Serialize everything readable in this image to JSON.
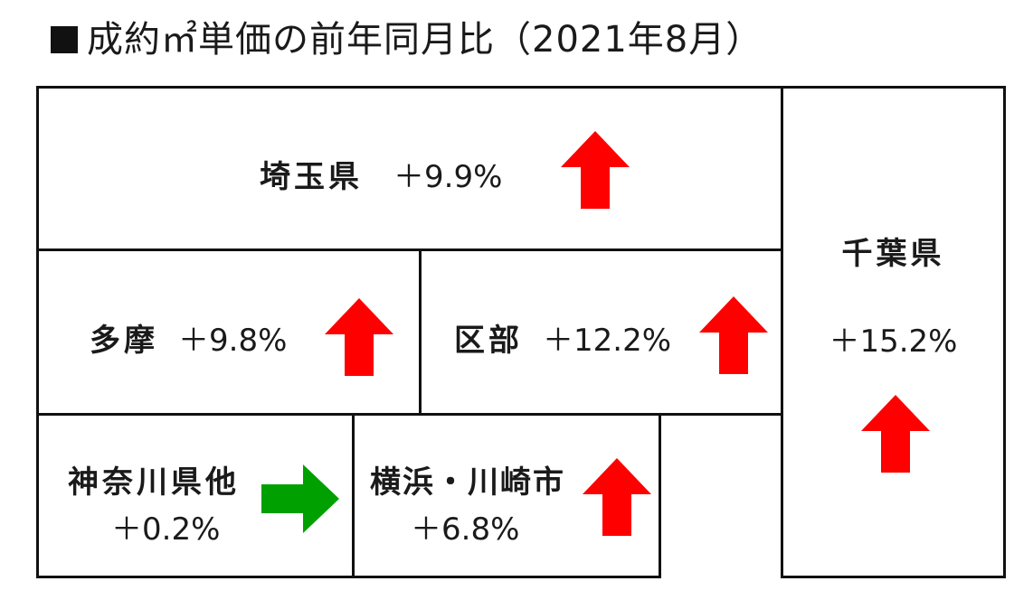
{
  "title": "成約㎡単価の前年同月比（2021年8月）",
  "colors": {
    "up": "#ff0000",
    "flat": "#00a000",
    "border": "#111111"
  },
  "regions": {
    "saitama": {
      "name": "埼玉県",
      "change": "＋9.9%",
      "trend": "up"
    },
    "tama": {
      "name": "多摩",
      "change": "＋9.8%",
      "trend": "up"
    },
    "ku": {
      "name": "区部",
      "change": "＋12.2%",
      "trend": "up"
    },
    "chiba": {
      "name": "千葉県",
      "change": "＋15.2%",
      "trend": "up"
    },
    "kanagawa": {
      "name": "神奈川県他",
      "change": "＋0.2%",
      "trend": "flat"
    },
    "yokohama": {
      "name": "横浜・川崎市",
      "change": "＋6.8%",
      "trend": "up"
    }
  }
}
